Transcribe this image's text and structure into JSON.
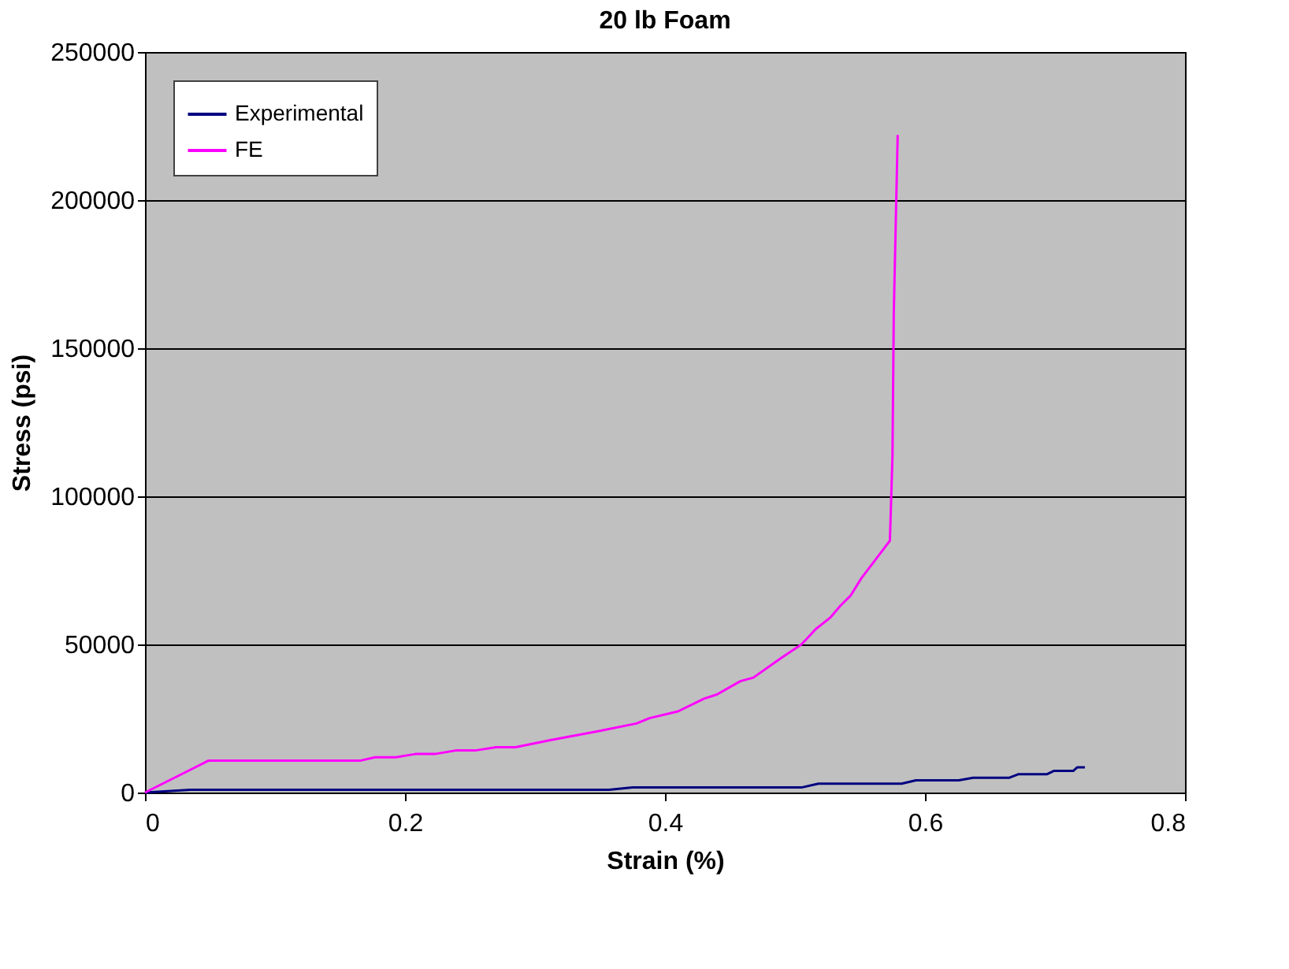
{
  "chart_data": {
    "type": "line",
    "title": "20 lb Foam",
    "xlabel": "Strain (%)",
    "ylabel": "Stress (psi)",
    "xlim": [
      0,
      0.8
    ],
    "xticks": [
      0,
      0.2,
      0.4,
      0.6,
      0.8
    ],
    "ylim": [
      0,
      250000
    ],
    "yticks": [
      0,
      50000,
      100000,
      150000,
      200000,
      250000
    ],
    "grid": "y",
    "legend": "top left",
    "marker": "none",
    "line_style": "solid",
    "series": [
      {
        "name": "Experimental",
        "color": "#000080",
        "x": [
          0,
          0.035,
          0.357,
          0.375,
          0.505,
          0.518,
          0.582,
          0.593,
          0.626,
          0.637,
          0.665,
          0.672,
          0.694,
          0.699,
          0.714,
          0.717,
          0.723
        ],
        "values": [
          0,
          900,
          900,
          1700,
          1700,
          3000,
          3000,
          4100,
          4100,
          5000,
          5000,
          6200,
          6200,
          7300,
          7300,
          8500,
          8500
        ]
      },
      {
        "name": "FE",
        "color": "#ff00ff",
        "x": [
          0,
          0.049,
          0.166,
          0.177,
          0.193,
          0.208,
          0.223,
          0.239,
          0.254,
          0.27,
          0.285,
          0.311,
          0.352,
          0.378,
          0.388,
          0.41,
          0.43,
          0.44,
          0.458,
          0.468,
          0.49,
          0.505,
          0.516,
          0.527,
          0.535,
          0.543,
          0.551,
          0.573,
          0.575,
          0.576,
          0.579
        ],
        "values": [
          0,
          10800,
          10800,
          11900,
          11900,
          13000,
          13000,
          14200,
          14200,
          15300,
          15300,
          17600,
          21000,
          23300,
          25100,
          27400,
          31700,
          33100,
          37600,
          38800,
          45600,
          50000,
          55200,
          59000,
          63100,
          66600,
          72300,
          85000,
          113700,
          162000,
          222000
        ]
      }
    ]
  }
}
